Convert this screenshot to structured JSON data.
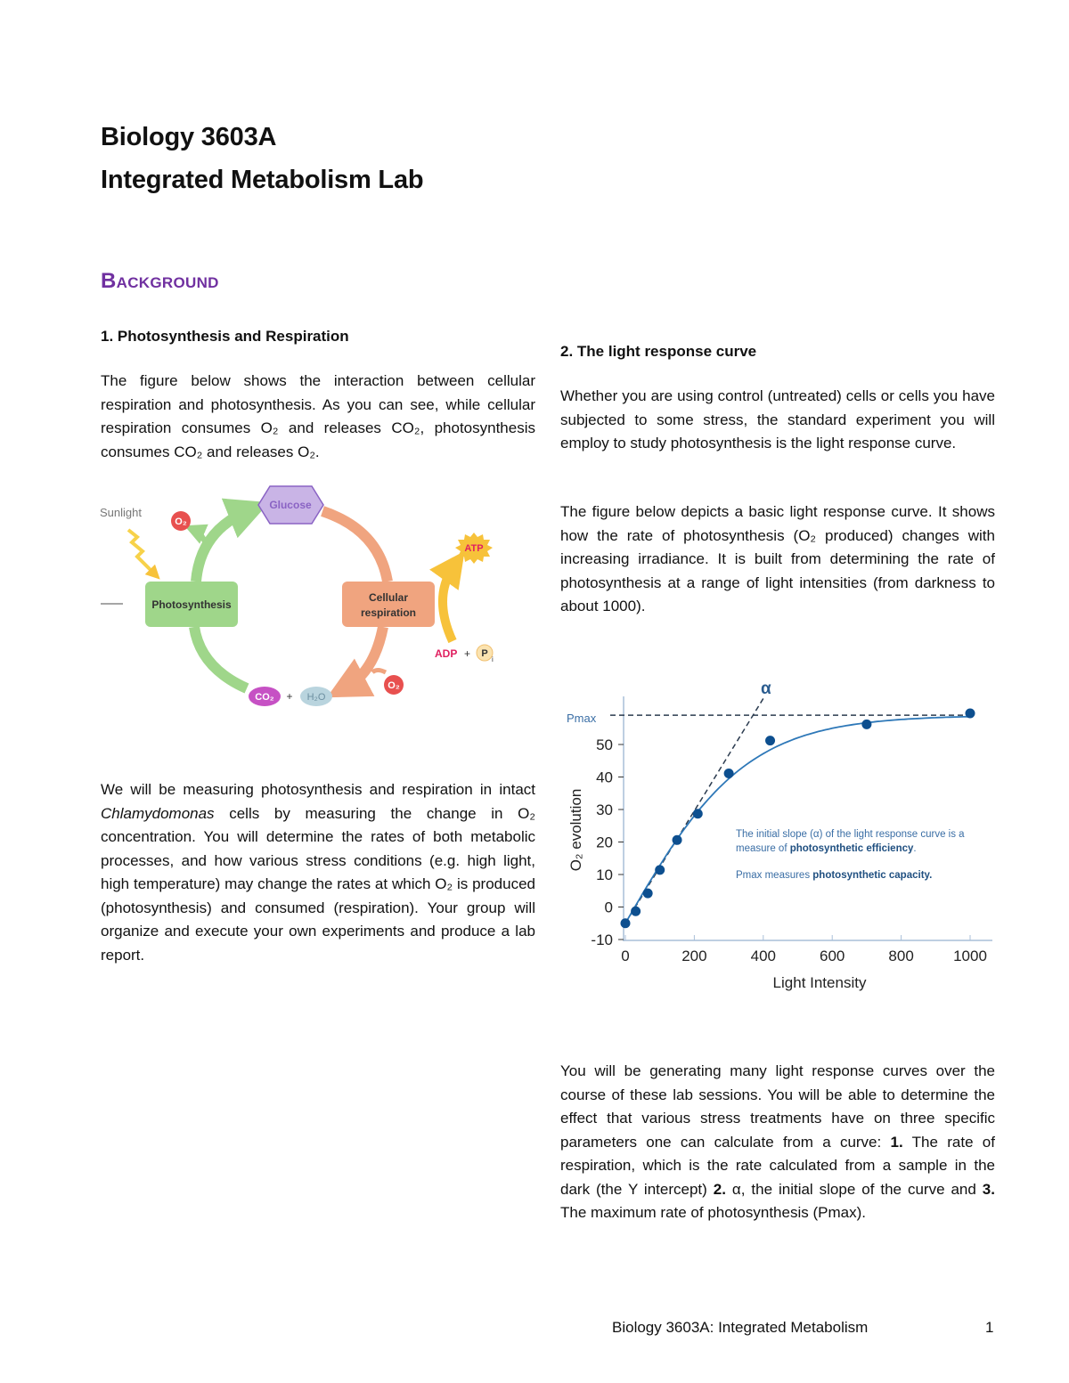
{
  "header": {
    "course": "Biology 3603A",
    "title": "Integrated Metabolism Lab"
  },
  "section_title": "Background",
  "left": {
    "heading": "1. Photosynthesis and Respiration",
    "para1": "The figure below shows the interaction between cellular respiration and photosynthesis.  As you can see, while cellular respiration consumes O₂ and releases CO₂, photosynthesis consumes CO₂ and releases O₂.",
    "diagram": {
      "sunlight": "Sunlight",
      "o2": "O₂",
      "glucose": "Glucose",
      "photosynthesis": "Photosynthesis",
      "respiration_line1": "Cellular",
      "respiration_line2": "respiration",
      "atp": "ATP",
      "adp": "ADP",
      "plus": "+",
      "pi": "P",
      "pi_sub": "i",
      "co2": "CO₂",
      "h2o": "H₂O",
      "colors": {
        "photosynthesis": "#9fd68a",
        "respiration": "#f0a47f",
        "glucose": "#c9b4e6",
        "o2": "#e8504f",
        "atp": "#f7c23a"
      }
    },
    "para2_a": "We will be measuring photosynthesis and respiration in intact ",
    "para2_italic": "Chlamydomonas",
    "para2_b": " cells by measuring the change in O₂ concentration.  You will determine the rates of both metabolic processes, and how various stress conditions (e.g. high light, high temperature) may change the rates at which O₂ is produced (photosynthesis) and consumed (respiration). Your group will organize and execute your own experiments and produce a lab report."
  },
  "right": {
    "heading": "2. The light response curve",
    "para1": "Whether you are using control (untreated) cells or cells you have subjected to some stress, the standard experiment you will employ to study photosynthesis is the light response curve.",
    "para2": "The figure below depicts a basic light response curve.  It shows how the rate of photosynthesis (O₂ produced) changes with increasing irradiance.  It is built from determining the rate of photosynthesis at a range of light intensities (from darkness to about 1000).",
    "para3_a": "You will be generating many light response curves over the course of these lab sessions.  You will be able to determine the effect that various stress treatments have on three specific parameters one can calculate from a curve:  ",
    "para3_b1": "1.",
    "para3_c": " The rate of respiration, which is the rate calculated from a sample in the dark (the Y intercept) ",
    "para3_b2": "2.",
    "para3_d": " α, the initial slope of the curve and ",
    "para3_b3": "3.",
    "para3_e": " The maximum rate of photosynthesis (Pmax)."
  },
  "chart_data": {
    "type": "scatter",
    "xlabel": "Light Intensity",
    "ylabel": "O₂ evolution",
    "xlim": [
      0,
      1000
    ],
    "ylim": [
      -10,
      60
    ],
    "x_ticks": [
      0,
      200,
      400,
      600,
      800,
      1000
    ],
    "y_ticks": [
      -10,
      0,
      10,
      20,
      30,
      40,
      50
    ],
    "x": [
      0,
      30,
      65,
      100,
      150,
      210,
      300,
      420,
      700,
      1000
    ],
    "y": [
      -5,
      -1.3,
      4.2,
      11.4,
      20.6,
      28.7,
      41.1,
      51.2,
      56.2,
      59.6
    ],
    "pmax": 59,
    "pmax_label": "Pmax",
    "alpha_label": "α",
    "annotation1_a": "The initial slope (α) of the light response curve is a",
    "annotation1_b": "measure of ",
    "annotation1_bold": "photosynthetic efficiency",
    "annotation1_end": ".",
    "annotation2_a": "Pmax measures ",
    "annotation2_bold": "photosynthetic capacity.",
    "grid": false,
    "colors": {
      "points": "#0d4f8f",
      "curve": "#2e78b8",
      "annotation": "#3a6ea5",
      "axis": "#a9bfd8"
    }
  },
  "footer": {
    "text": "Biology 3603A:  Integrated Metabolism",
    "page": "1"
  }
}
